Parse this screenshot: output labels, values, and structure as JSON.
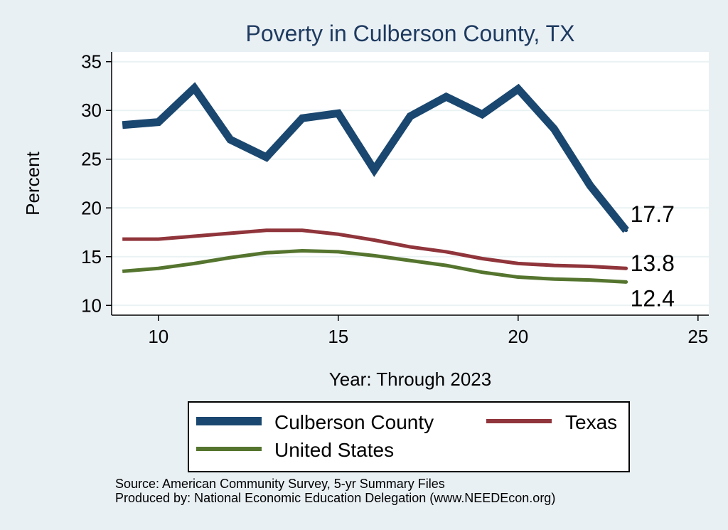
{
  "chart_data": {
    "type": "line",
    "title": "Poverty in Culberson County, TX",
    "xlabel": "Year: Through 2023",
    "ylabel": "Percent",
    "xlim": [
      8.7,
      25.3
    ],
    "ylim": [
      9.0,
      36.0
    ],
    "x": [
      9,
      10,
      11,
      12,
      13,
      14,
      15,
      16,
      17,
      18,
      19,
      20,
      21,
      22,
      23
    ],
    "x_ticks": [
      10,
      15,
      20,
      25
    ],
    "y_ticks": [
      10,
      15,
      20,
      25,
      30,
      35
    ],
    "grid": true,
    "legend_position": "bottom",
    "series": [
      {
        "name": "Culberson County",
        "color": "#1a476f",
        "end_label": "17.7",
        "values": [
          28.5,
          28.8,
          32.3,
          27.0,
          25.2,
          29.2,
          29.7,
          23.9,
          29.4,
          31.4,
          29.6,
          32.2,
          28.1,
          22.3,
          17.7
        ]
      },
      {
        "name": "Texas",
        "color": "#90353b",
        "end_label": "13.8",
        "values": [
          16.8,
          16.8,
          17.1,
          17.4,
          17.7,
          17.7,
          17.3,
          16.7,
          16.0,
          15.5,
          14.8,
          14.3,
          14.1,
          14.0,
          13.8
        ]
      },
      {
        "name": "United States",
        "color": "#55752f",
        "end_label": "12.4",
        "values": [
          13.5,
          13.8,
          14.3,
          14.9,
          15.4,
          15.6,
          15.5,
          15.1,
          14.6,
          14.1,
          13.4,
          12.9,
          12.7,
          12.6,
          12.4
        ]
      }
    ]
  },
  "footer": {
    "source": "Source: American Community Survey, 5-yr Summary Files",
    "produced_by": "Produced by: National Economic Education Delegation (www.NEEDEcon.org)"
  }
}
